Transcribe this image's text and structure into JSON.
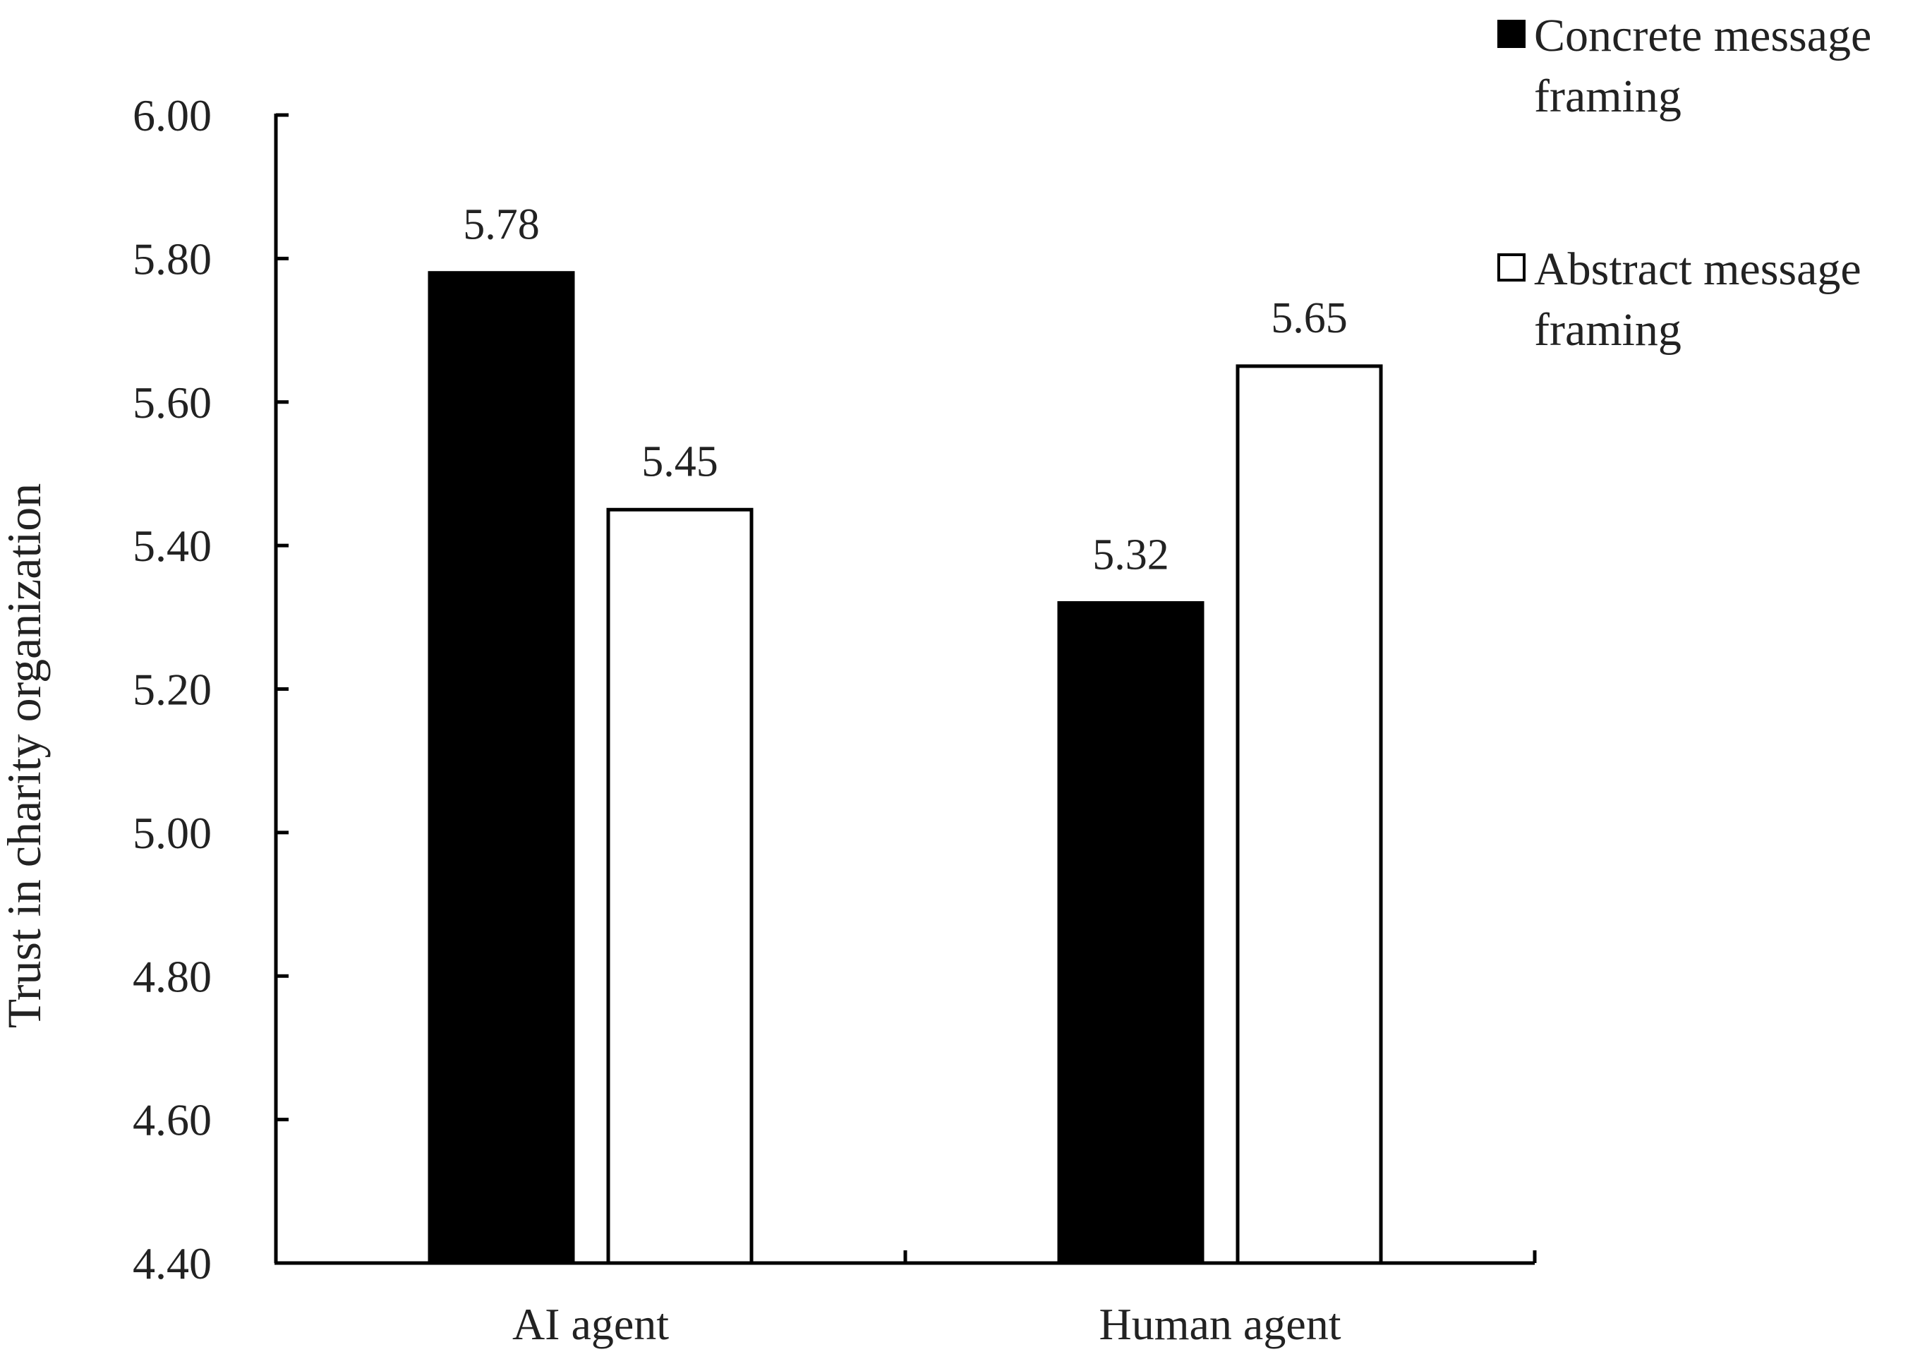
{
  "chart_data": {
    "type": "bar",
    "ylabel": "Trust in charity organization",
    "xlabel": "",
    "categories": [
      "AI agent",
      "Human agent"
    ],
    "ylim": [
      4.4,
      6.0
    ],
    "y_ticks": [
      "6.00",
      "5.80",
      "5.60",
      "5.40",
      "5.20",
      "5.00",
      "4.80",
      "4.60",
      "4.40"
    ],
    "series": [
      {
        "name": "Concrete message framing",
        "legend_lines": [
          "Concrete message",
          "framing"
        ],
        "fill": "#000000",
        "values": [
          5.78,
          5.32
        ],
        "labels": [
          "5.78",
          "5.32"
        ]
      },
      {
        "name": "Abstract message framing",
        "legend_lines": [
          "Abstract message",
          "framing"
        ],
        "fill": "#ffffff",
        "values": [
          5.45,
          5.65
        ],
        "labels": [
          "5.45",
          "5.65"
        ]
      }
    ],
    "data_labels": true,
    "grid": false,
    "legend_position": "top-right"
  }
}
